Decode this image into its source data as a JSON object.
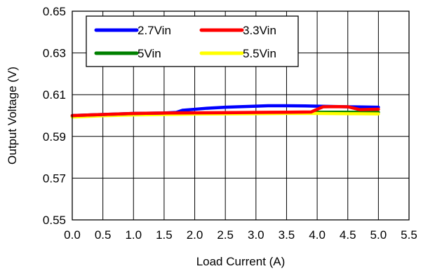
{
  "chart_data": {
    "type": "line",
    "title": "",
    "xlabel": "Load Current (A)",
    "ylabel": "Output Voltage (V)",
    "xlim": [
      0.0,
      5.5
    ],
    "ylim": [
      0.55,
      0.65
    ],
    "x_ticks": [
      "0.0",
      "0.5",
      "1.0",
      "1.5",
      "2.0",
      "2.5",
      "3.0",
      "3.5",
      "4.0",
      "4.5",
      "5.0",
      "5.5"
    ],
    "y_ticks": [
      "0.55",
      "0.57",
      "0.59",
      "0.61",
      "0.63",
      "0.65"
    ],
    "grid": true,
    "legend_position": "top-left",
    "series": [
      {
        "name": "2.7Vin",
        "color": "#0000ff",
        "x": [
          0.0,
          0.5,
          1.0,
          1.5,
          1.7,
          1.8,
          2.0,
          2.2,
          2.5,
          2.7,
          3.0,
          3.2,
          3.5,
          3.8,
          4.0,
          4.5,
          5.0
        ],
        "y": [
          0.6,
          0.6005,
          0.601,
          0.6012,
          0.6015,
          0.6025,
          0.603,
          0.6035,
          0.604,
          0.6042,
          0.6045,
          0.6047,
          0.6047,
          0.6046,
          0.6045,
          0.6042,
          0.604
        ]
      },
      {
        "name": "3.3Vin",
        "color": "#ff0000",
        "x": [
          0.0,
          0.5,
          1.0,
          1.5,
          2.0,
          2.5,
          3.0,
          3.5,
          3.9,
          4.0,
          4.1,
          4.3,
          4.5,
          4.6,
          4.7,
          5.0
        ],
        "y": [
          0.6,
          0.6005,
          0.601,
          0.6012,
          0.6013,
          0.6014,
          0.6015,
          0.6016,
          0.6017,
          0.603,
          0.6042,
          0.6043,
          0.6042,
          0.6035,
          0.6028,
          0.603
        ]
      },
      {
        "name": "5Vin",
        "color": "#008000",
        "x": [
          0.0,
          0.5,
          1.0,
          1.5,
          2.0,
          2.5,
          3.0,
          3.5,
          4.0,
          4.5,
          5.0
        ],
        "y": [
          0.5995,
          0.6002,
          0.6007,
          0.601,
          0.6012,
          0.6013,
          0.6014,
          0.6015,
          0.6016,
          0.6016,
          0.6016
        ]
      },
      {
        "name": "5.5Vin",
        "color": "#ffff00",
        "x": [
          0.0,
          0.5,
          1.0,
          1.5,
          2.0,
          2.5,
          3.0,
          3.5,
          4.0,
          4.5,
          5.0
        ],
        "y": [
          0.5993,
          0.5999,
          0.6003,
          0.6005,
          0.6007,
          0.6008,
          0.6009,
          0.601,
          0.601,
          0.6009,
          0.6008
        ]
      }
    ]
  }
}
